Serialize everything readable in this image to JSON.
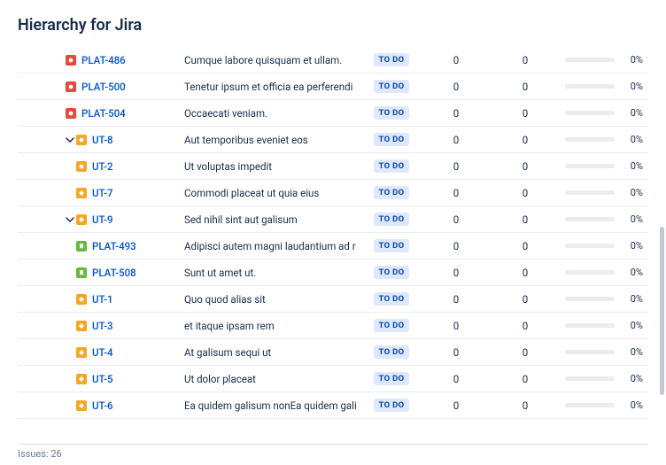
{
  "title": "Hierarchy for Jira",
  "status_label": "TO DO",
  "colors": {
    "bug": "#e5493a",
    "story": "#63ba3c",
    "task": "#f5a623",
    "link": "#0052cc",
    "text": "#172b4d",
    "badge_bg": "#dfe7fd",
    "badge_text": "#0747a6",
    "row_border": "#ebecf0",
    "progress_bg": "#ebecf0"
  },
  "rows": [
    {
      "key": "PLAT-486",
      "summary": "Cumque labore quisquam et ullam.",
      "type": "bug",
      "indent": 0,
      "expand": false,
      "n1": 0,
      "n2": 0,
      "pct": "0%"
    },
    {
      "key": "PLAT-500",
      "summary": "Tenetur ipsum et officia ea perferendi",
      "type": "bug",
      "indent": 0,
      "expand": false,
      "n1": 0,
      "n2": 0,
      "pct": "0%"
    },
    {
      "key": "PLAT-504",
      "summary": "Occaecati veniam.",
      "type": "bug",
      "indent": 0,
      "expand": false,
      "n1": 0,
      "n2": 0,
      "pct": "0%"
    },
    {
      "key": "UT-8",
      "summary": "Aut temporibus eveniet eos",
      "type": "task",
      "indent": 1,
      "expand": true,
      "n1": 0,
      "n2": 0,
      "pct": "0%"
    },
    {
      "key": "UT-2",
      "summary": "Ut voluptas impedit",
      "type": "task",
      "indent": 2,
      "expand": false,
      "n1": 0,
      "n2": 0,
      "pct": "0%"
    },
    {
      "key": "UT-7",
      "summary": "Commodi placeat ut quia eius",
      "type": "task",
      "indent": 2,
      "expand": false,
      "n1": 0,
      "n2": 0,
      "pct": "0%"
    },
    {
      "key": "UT-9",
      "summary": "Sed nihil sint aut galisum",
      "type": "task",
      "indent": 1,
      "expand": true,
      "n1": 0,
      "n2": 0,
      "pct": "0%"
    },
    {
      "key": "PLAT-493",
      "summary": "Adipisci autem magni laudantium ad r",
      "type": "story",
      "indent": 2,
      "expand": false,
      "n1": 0,
      "n2": 0,
      "pct": "0%"
    },
    {
      "key": "PLAT-508",
      "summary": "Sunt ut amet ut.",
      "type": "story",
      "indent": 2,
      "expand": false,
      "n1": 0,
      "n2": 0,
      "pct": "0%"
    },
    {
      "key": "UT-1",
      "summary": "Quo quod alias sit",
      "type": "task",
      "indent": 2,
      "expand": false,
      "n1": 0,
      "n2": 0,
      "pct": "0%"
    },
    {
      "key": "UT-3",
      "summary": "et itaque ipsam rem",
      "type": "task",
      "indent": 2,
      "expand": false,
      "n1": 0,
      "n2": 0,
      "pct": "0%"
    },
    {
      "key": "UT-4",
      "summary": "At galisum sequi ut",
      "type": "task",
      "indent": 2,
      "expand": false,
      "n1": 0,
      "n2": 0,
      "pct": "0%"
    },
    {
      "key": "UT-5",
      "summary": "Ut dolor placeat",
      "type": "task",
      "indent": 2,
      "expand": false,
      "n1": 0,
      "n2": 0,
      "pct": "0%"
    },
    {
      "key": "UT-6",
      "summary": "Ea quidem galisum nonEa quidem gali",
      "type": "task",
      "indent": 2,
      "expand": false,
      "n1": 0,
      "n2": 0,
      "pct": "0%"
    }
  ],
  "footer": "Issues: 26"
}
